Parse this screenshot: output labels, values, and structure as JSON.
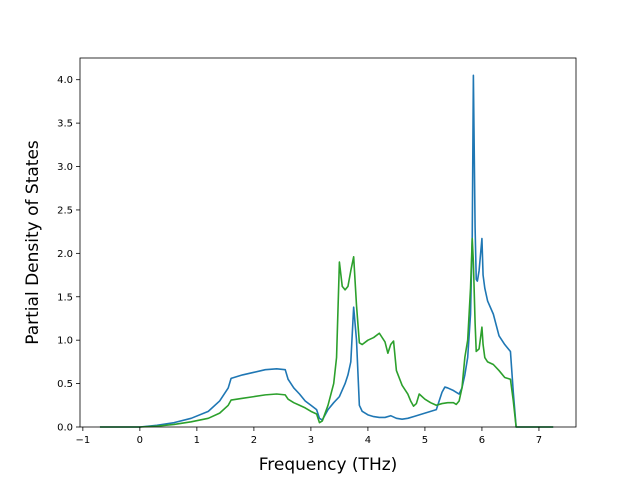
{
  "chart_data": {
    "type": "line",
    "title": "",
    "xlabel": "Frequency (THz)",
    "ylabel": "Partial Density of States",
    "xlim": [
      -1.05,
      7.65
    ],
    "ylim": [
      0,
      4.25
    ],
    "xticks": [
      -1,
      0,
      1,
      2,
      3,
      4,
      5,
      6,
      7
    ],
    "yticks": [
      0.0,
      0.5,
      1.0,
      1.5,
      2.0,
      2.5,
      3.0,
      3.5,
      4.0
    ],
    "xtick_labels": [
      "−1",
      "0",
      "1",
      "2",
      "3",
      "4",
      "5",
      "6",
      "7"
    ],
    "ytick_labels": [
      "0.0",
      "0.5",
      "1.0",
      "1.5",
      "2.0",
      "2.5",
      "3.0",
      "3.5",
      "4.0"
    ],
    "grid": false,
    "series": [
      {
        "color": "#1f77b4",
        "x": [
          -0.7,
          0.0,
          0.3,
          0.6,
          0.9,
          1.2,
          1.4,
          1.55,
          1.6,
          1.8,
          2.0,
          2.2,
          2.4,
          2.55,
          2.6,
          2.7,
          2.8,
          2.9,
          3.0,
          3.1,
          3.15,
          3.2,
          3.3,
          3.4,
          3.5,
          3.6,
          3.65,
          3.7,
          3.75,
          3.8,
          3.85,
          3.9,
          4.0,
          4.1,
          4.2,
          4.3,
          4.4,
          4.5,
          4.6,
          4.7,
          4.8,
          4.9,
          5.0,
          5.1,
          5.2,
          5.3,
          5.35,
          5.4,
          5.5,
          5.6,
          5.65,
          5.7,
          5.75,
          5.8,
          5.83,
          5.85,
          5.88,
          5.9,
          5.92,
          5.95,
          6.0,
          6.02,
          6.05,
          6.1,
          6.2,
          6.3,
          6.4,
          6.5,
          6.55,
          6.6,
          6.7,
          7.0,
          7.25
        ],
        "y": [
          0.0,
          0.0,
          0.02,
          0.05,
          0.1,
          0.18,
          0.3,
          0.45,
          0.56,
          0.6,
          0.63,
          0.66,
          0.67,
          0.66,
          0.55,
          0.45,
          0.38,
          0.3,
          0.25,
          0.2,
          0.1,
          0.08,
          0.2,
          0.28,
          0.35,
          0.5,
          0.6,
          0.75,
          1.38,
          1.0,
          0.25,
          0.18,
          0.14,
          0.12,
          0.11,
          0.11,
          0.13,
          0.1,
          0.09,
          0.1,
          0.12,
          0.14,
          0.16,
          0.18,
          0.2,
          0.4,
          0.46,
          0.45,
          0.42,
          0.38,
          0.45,
          0.6,
          0.8,
          1.3,
          2.2,
          4.05,
          2.3,
          1.7,
          1.68,
          1.8,
          2.17,
          1.75,
          1.6,
          1.45,
          1.3,
          1.05,
          0.95,
          0.87,
          0.4,
          0.0,
          0.0,
          0.0,
          0.0
        ]
      },
      {
        "color": "#2ca02c",
        "x": [
          -0.7,
          0.0,
          0.3,
          0.6,
          0.9,
          1.2,
          1.4,
          1.55,
          1.6,
          1.8,
          2.0,
          2.2,
          2.4,
          2.55,
          2.6,
          2.7,
          2.8,
          2.9,
          3.0,
          3.1,
          3.15,
          3.2,
          3.3,
          3.4,
          3.45,
          3.5,
          3.55,
          3.6,
          3.65,
          3.7,
          3.75,
          3.8,
          3.85,
          3.9,
          4.0,
          4.1,
          4.2,
          4.3,
          4.35,
          4.4,
          4.45,
          4.5,
          4.6,
          4.7,
          4.75,
          4.8,
          4.85,
          4.9,
          5.0,
          5.1,
          5.2,
          5.3,
          5.4,
          5.5,
          5.55,
          5.6,
          5.65,
          5.7,
          5.75,
          5.8,
          5.83,
          5.85,
          5.88,
          5.9,
          5.95,
          6.0,
          6.02,
          6.05,
          6.1,
          6.2,
          6.3,
          6.4,
          6.5,
          6.55,
          6.6,
          6.7,
          7.0,
          7.25
        ],
        "y": [
          0.0,
          0.0,
          0.01,
          0.03,
          0.06,
          0.1,
          0.16,
          0.25,
          0.31,
          0.33,
          0.35,
          0.37,
          0.38,
          0.37,
          0.32,
          0.28,
          0.25,
          0.22,
          0.18,
          0.15,
          0.05,
          0.07,
          0.25,
          0.5,
          0.8,
          1.9,
          1.62,
          1.58,
          1.62,
          1.8,
          1.96,
          1.4,
          0.97,
          0.95,
          1.0,
          1.03,
          1.08,
          0.98,
          0.85,
          0.95,
          0.99,
          0.65,
          0.48,
          0.38,
          0.3,
          0.24,
          0.27,
          0.38,
          0.32,
          0.28,
          0.25,
          0.27,
          0.28,
          0.28,
          0.26,
          0.3,
          0.45,
          0.8,
          1.0,
          1.6,
          2.17,
          1.9,
          1.2,
          0.87,
          0.9,
          1.15,
          0.95,
          0.8,
          0.75,
          0.72,
          0.65,
          0.57,
          0.55,
          0.3,
          0.0,
          0.0,
          0.0,
          0.0
        ]
      }
    ]
  }
}
